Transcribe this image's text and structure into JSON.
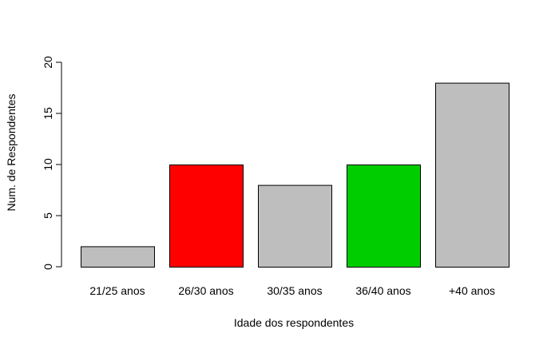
{
  "chart_data": {
    "type": "bar",
    "title": "",
    "xlabel": "Idade dos respondentes",
    "ylabel": "Num. de Respondentes",
    "categories": [
      "21/25 anos",
      "26/30 anos",
      "30/35 anos",
      "36/40 anos",
      "+40 anos"
    ],
    "values": [
      2,
      10,
      8,
      10,
      18
    ],
    "colors": [
      "#bebebe",
      "#ff0000",
      "#bebebe",
      "#00cd00",
      "#bebebe"
    ],
    "ylim": [
      0,
      20
    ],
    "yticks": [
      0,
      5,
      10,
      15,
      20
    ],
    "grid": false,
    "legend": "none"
  }
}
